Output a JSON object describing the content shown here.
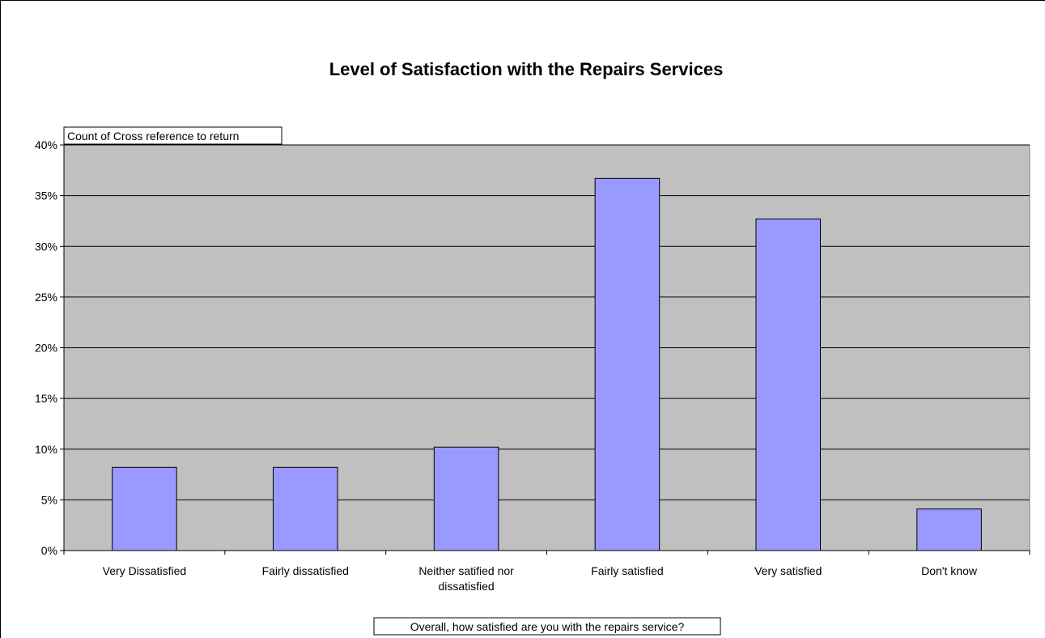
{
  "chart_data": {
    "type": "bar",
    "title": "Level of Satisfaction with the Repairs Services",
    "field_label": "Count of Cross reference to return",
    "xlabel": "Overall, how satisfied are you with the repairs service?",
    "ylabel": "",
    "categories": [
      [
        "Very Dissatisfied"
      ],
      [
        "Fairly dissatisfied"
      ],
      [
        "Neither satified nor",
        "dissatisfied"
      ],
      [
        "Fairly satisfied"
      ],
      [
        "Very satisfied"
      ],
      [
        "Don't know"
      ]
    ],
    "values": [
      8.2,
      8.2,
      10.2,
      36.7,
      32.7,
      4.1
    ],
    "ylim": [
      0,
      40
    ],
    "yticks": [
      "0%",
      "5%",
      "10%",
      "15%",
      "20%",
      "25%",
      "30%",
      "35%",
      "40%"
    ],
    "grid": true,
    "colors": {
      "bar": "#9999ff",
      "plot_background": "#c0c0c0",
      "gridline": "#000000"
    }
  }
}
